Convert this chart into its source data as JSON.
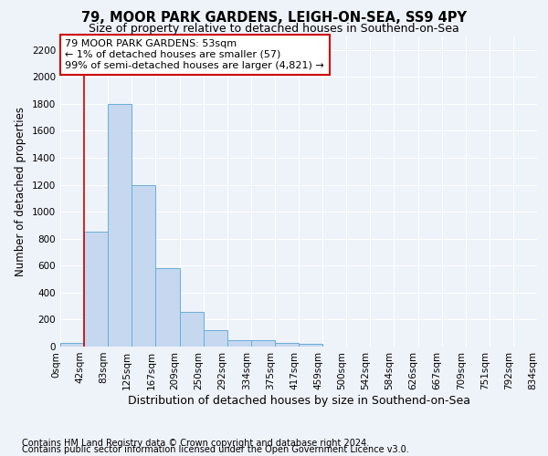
{
  "title1": "79, MOOR PARK GARDENS, LEIGH-ON-SEA, SS9 4PY",
  "title2": "Size of property relative to detached houses in Southend-on-Sea",
  "xlabel": "Distribution of detached houses by size in Southend-on-Sea",
  "ylabel": "Number of detached properties",
  "bin_labels": [
    "0sqm",
    "42sqm",
    "83sqm",
    "125sqm",
    "167sqm",
    "209sqm",
    "250sqm",
    "292sqm",
    "334sqm",
    "375sqm",
    "417sqm",
    "459sqm",
    "500sqm",
    "542sqm",
    "584sqm",
    "626sqm",
    "667sqm",
    "709sqm",
    "751sqm",
    "792sqm",
    "834sqm"
  ],
  "bar_values": [
    25,
    850,
    1800,
    1200,
    580,
    260,
    120,
    45,
    45,
    30,
    18,
    0,
    0,
    0,
    0,
    0,
    0,
    0,
    0,
    0
  ],
  "bar_color": "#c5d8f0",
  "bar_edge_color": "#6baed6",
  "property_line_x": 1,
  "annotation_text": "79 MOOR PARK GARDENS: 53sqm\n← 1% of detached houses are smaller (57)\n99% of semi-detached houses are larger (4,821) →",
  "annotation_box_color": "#ffffff",
  "annotation_box_edge": "#cc0000",
  "vline_color": "#cc0000",
  "footer1": "Contains HM Land Registry data © Crown copyright and database right 2024.",
  "footer2": "Contains public sector information licensed under the Open Government Licence v3.0.",
  "ylim": [
    0,
    2300
  ],
  "yticks": [
    0,
    200,
    400,
    600,
    800,
    1000,
    1200,
    1400,
    1600,
    1800,
    2000,
    2200
  ],
  "background_color": "#eef2f9",
  "grid_color": "#ffffff",
  "title1_fontsize": 10.5,
  "title2_fontsize": 9,
  "xlabel_fontsize": 9,
  "ylabel_fontsize": 8.5,
  "tick_fontsize": 7.5,
  "annot_fontsize": 8,
  "footer_fontsize": 7
}
